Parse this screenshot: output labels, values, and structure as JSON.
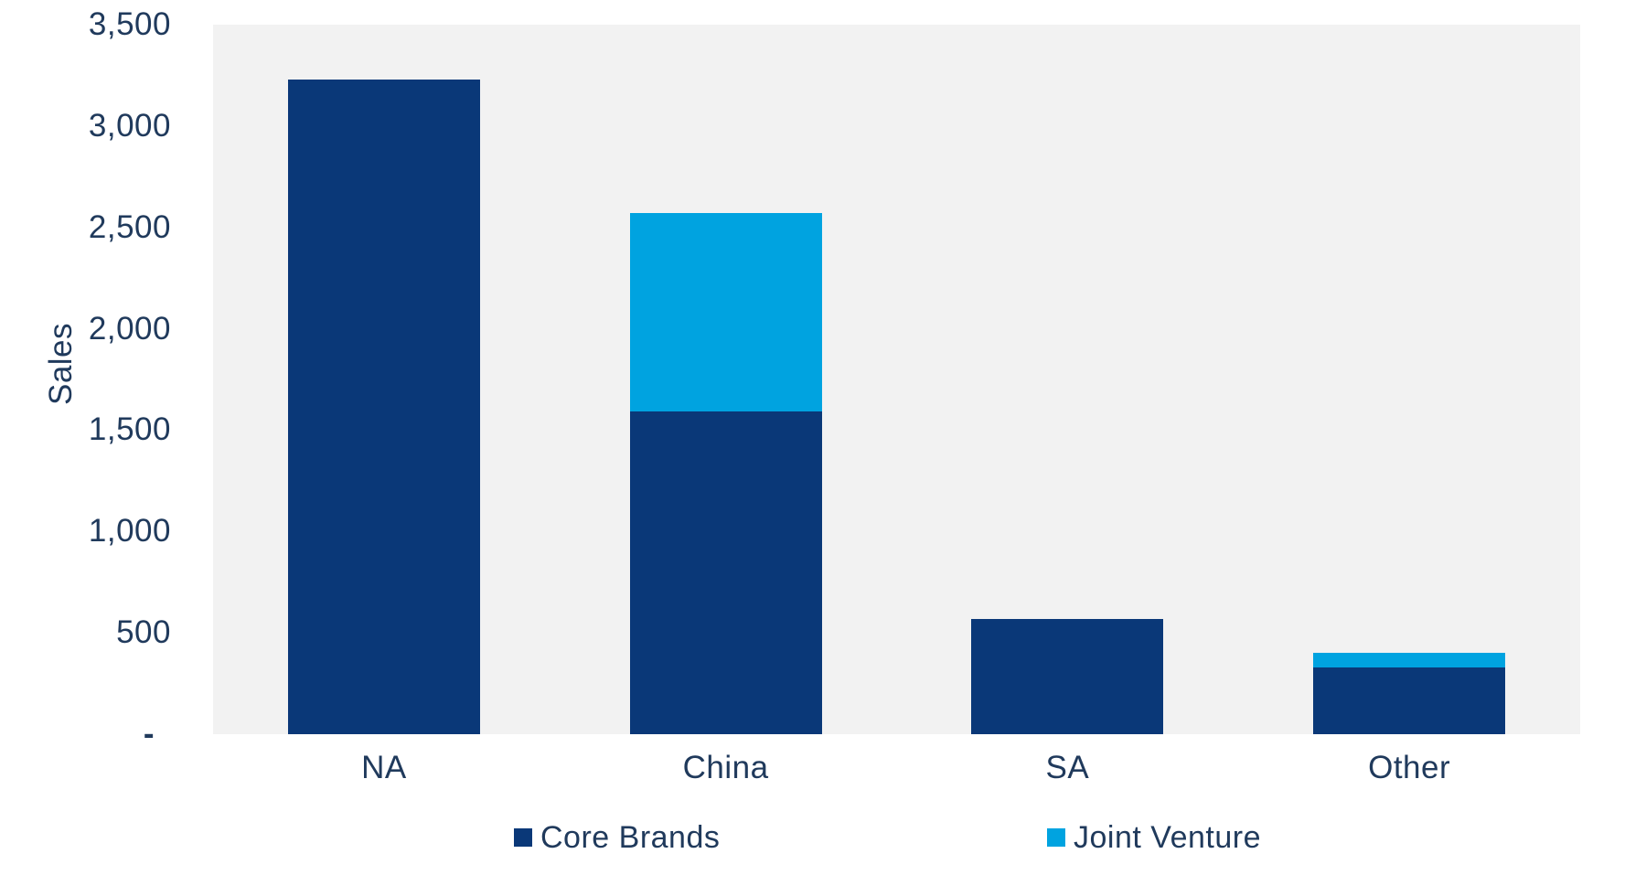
{
  "chart_data": {
    "type": "bar",
    "stacked": true,
    "title": "",
    "xlabel": "",
    "ylabel": "Sales",
    "categories": [
      "NA",
      "China",
      "SA",
      "Other"
    ],
    "series": [
      {
        "name": "Core Brands",
        "color": "#0A3878",
        "values": [
          3230,
          1590,
          570,
          330
        ]
      },
      {
        "name": "Joint Venture",
        "color": "#00A3E0",
        "values": [
          0,
          980,
          0,
          70
        ]
      }
    ],
    "totals": [
      3230,
      2570,
      570,
      400
    ],
    "ylim": [
      0,
      3500
    ],
    "yticks": [
      0,
      500,
      1000,
      1500,
      2000,
      2500,
      3000,
      3500
    ],
    "ytick_labels": [
      "-",
      "500",
      "1,000",
      "1,500",
      "2,000",
      "2,500",
      "3,000",
      "3,500"
    ],
    "grid": false,
    "legend_position": "bottom",
    "plot_background": "#F2F2F2",
    "text_color": "#203A5C"
  }
}
